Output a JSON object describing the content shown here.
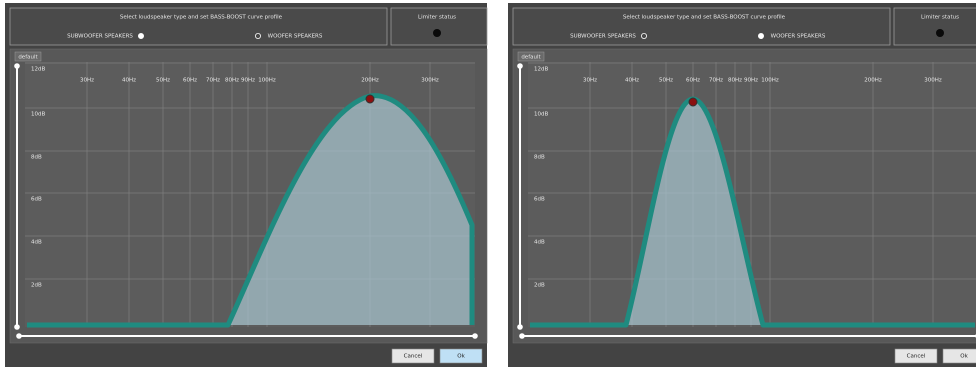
{
  "panels": [
    {
      "header": {
        "title": "Select loudspeaker type and set BASS-BOOST curve profile",
        "subwoofer": "SUBWOOFER SPEAKERS",
        "woofer": "WOOFER SPEAKERS",
        "limiter": "Limiter status",
        "selected": "subwoofer"
      },
      "graph": {
        "label": "default",
        "x_labels": [
          "30Hz",
          "40Hz",
          "50Hz",
          "60Hz",
          "70Hz",
          "80Hz",
          "90Hz",
          "100Hz",
          "200Hz",
          "300Hz"
        ],
        "y_labels": [
          "12dB",
          "10dB",
          "8dB",
          "6dB",
          "4dB",
          "2dB"
        ]
      },
      "buttons": [
        "Cancel",
        "Ok"
      ]
    },
    {
      "header": {
        "title": "Select loudspeaker type and set BASS-BOOST curve profile",
        "subwoofer": "SUBWOOFER SPEAKERS",
        "woofer": "WOOFER SPEAKERS",
        "limiter": "Limiter status",
        "selected": "woofer"
      },
      "graph": {
        "label": "default",
        "x_labels": [
          "30Hz",
          "40Hz",
          "50Hz",
          "60Hz",
          "70Hz",
          "80Hz",
          "90Hz",
          "100Hz",
          "200Hz",
          "300Hz"
        ],
        "y_labels": [
          "12dB",
          "10dB",
          "8dB",
          "6dB",
          "4dB",
          "2dB"
        ]
      },
      "buttons": [
        "Cancel",
        "Ok"
      ]
    }
  ]
}
